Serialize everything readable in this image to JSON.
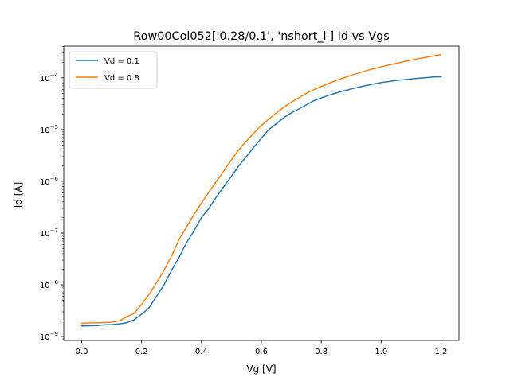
{
  "chart_data": {
    "type": "line",
    "title": "Row00Col052['0.28/0.1', 'nshort_l'] Id vs Vgs",
    "xlabel": "Vg [V]",
    "ylabel": "Id [A]",
    "xlim": [
      -0.06,
      1.26
    ],
    "ylim": [
      8.4e-10,
      0.00041
    ],
    "yscale": "log",
    "xticks": [
      0.0,
      0.2,
      0.4,
      0.6,
      0.8,
      1.0,
      1.2
    ],
    "xtick_labels": [
      "0.0",
      "0.2",
      "0.4",
      "0.6",
      "0.8",
      "1.0",
      "1.2"
    ],
    "yticks": [
      1e-09,
      1e-08,
      1e-07,
      1e-06,
      1e-05,
      0.0001
    ],
    "ytick_labels": [
      {
        "base": "10",
        "exp": "−9"
      },
      {
        "base": "10",
        "exp": "−8"
      },
      {
        "base": "10",
        "exp": "−7"
      },
      {
        "base": "10",
        "exp": "−6"
      },
      {
        "base": "10",
        "exp": "−5"
      },
      {
        "base": "10",
        "exp": "−4"
      }
    ],
    "grid": false,
    "legend_position": "upper-left",
    "x": [
      0.0,
      0.025,
      0.05,
      0.075,
      0.1,
      0.125,
      0.15,
      0.175,
      0.2,
      0.225,
      0.25,
      0.275,
      0.3,
      0.325,
      0.35,
      0.375,
      0.4,
      0.425,
      0.45,
      0.475,
      0.5,
      0.525,
      0.55,
      0.575,
      0.6,
      0.625,
      0.65,
      0.675,
      0.7,
      0.725,
      0.75,
      0.775,
      0.8,
      0.825,
      0.85,
      0.875,
      0.9,
      0.925,
      0.95,
      0.975,
      1.0,
      1.025,
      1.05,
      1.075,
      1.1,
      1.125,
      1.15,
      1.175,
      1.2
    ],
    "series": [
      {
        "name": "Vd = 0.1",
        "color": "#1f77b4",
        "values": [
          1.6e-09,
          1.62e-09,
          1.63e-09,
          1.68e-09,
          1.7e-09,
          1.75e-09,
          1.85e-09,
          2.1e-09,
          2.7e-09,
          3.6e-09,
          6e-09,
          1e-08,
          1.9e-08,
          3.4e-08,
          6.5e-08,
          1.1e-07,
          2e-07,
          3e-07,
          5e-07,
          8e-07,
          1.25e-06,
          2e-06,
          3e-06,
          4.6e-06,
          6.8e-06,
          1e-05,
          1.3e-05,
          1.7e-05,
          2.1e-05,
          2.5e-05,
          3e-05,
          3.6e-05,
          4.1e-05,
          4.6e-05,
          5.1e-05,
          5.6e-05,
          6.1e-05,
          6.6e-05,
          7.1e-05,
          7.6e-05,
          8.1e-05,
          8.5e-05,
          8.9e-05,
          9.2e-05,
          9.5e-05,
          9.8e-05,
          0.000101,
          0.000104,
          0.000105
        ]
      },
      {
        "name": "Vd = 0.8",
        "color": "#ff7f0e",
        "values": [
          1.8e-09,
          1.83e-09,
          1.84e-09,
          1.86e-09,
          1.9e-09,
          2e-09,
          2.4e-09,
          2.8e-09,
          4.2e-09,
          6.5e-09,
          1.1e-08,
          1.9e-08,
          3.6e-08,
          7.5e-08,
          1.3e-07,
          2.3e-07,
          3.8e-07,
          6.2e-07,
          1e-06,
          1.6e-06,
          2.6e-06,
          4.1e-06,
          6e-06,
          8.6e-06,
          1.2e-05,
          1.6e-05,
          2.1e-05,
          2.7e-05,
          3.4e-05,
          4.1e-05,
          5e-05,
          5.9e-05,
          6.8e-05,
          7.8e-05,
          8.9e-05,
          0.0001,
          0.000112,
          0.000124,
          0.000137,
          0.00015,
          0.000163,
          0.000176,
          0.00019,
          0.000205,
          0.00022,
          0.000235,
          0.00025,
          0.000265,
          0.00028
        ]
      }
    ]
  }
}
